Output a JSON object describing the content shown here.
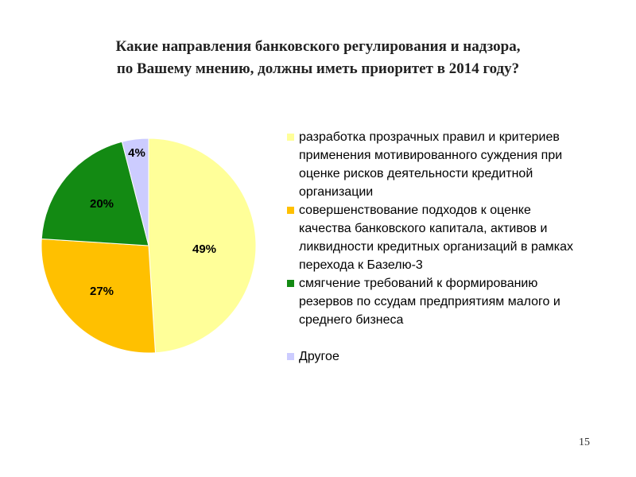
{
  "title": {
    "line1": "Какие направления банковского регулирования и надзора,",
    "line2": "по Вашему мнению, должны иметь приоритет в 2014 году?"
  },
  "chart_data": {
    "type": "pie",
    "title": "Какие направления банковского регулирования и надзора, по Вашему мнению, должны иметь приоритет в 2014 году?",
    "categories": [
      "разработка прозрачных правил и критериев применения мотивированного суждения при оценке рисков деятельности кредитной организации",
      "совершенствование подходов к оценке качества банковского капитала, активов и ликвидности кредитных организаций в рамках перехода к Базелю-3",
      "смягчение требований к формированию резервов по ссудам предприятиям малого и среднего бизнеса",
      "Другое"
    ],
    "values": [
      49,
      27,
      20,
      4
    ],
    "labels": [
      "49%",
      "27%",
      "20%",
      "4%"
    ],
    "colors": [
      "#FFFF99",
      "#FFC000",
      "#138A13",
      "#CCCCFF"
    ],
    "legend_position": "right"
  },
  "legend": {
    "items": [
      {
        "lines": [
          "разработка прозрачных правил и критериев",
          "применения мотивированного суждения при",
          "оценке рисков деятельности кредитной",
          "организации"
        ],
        "color": "#FFFF99"
      },
      {
        "lines": [
          "совершенствование подходов к оценке",
          "качества банковского капитала, активов и",
          "ликвидности кредитных организаций в рамках",
          "перехода к Базелю-3"
        ],
        "color": "#FFC000"
      },
      {
        "lines": [
          "смягчение требований к формированию",
          "резервов по ссудам предприятиям малого и",
          "среднего бизнеса"
        ],
        "color": "#138A13"
      },
      {
        "lines": [
          "Другое"
        ],
        "color": "#CCCCFF"
      }
    ]
  },
  "page_number": "15"
}
